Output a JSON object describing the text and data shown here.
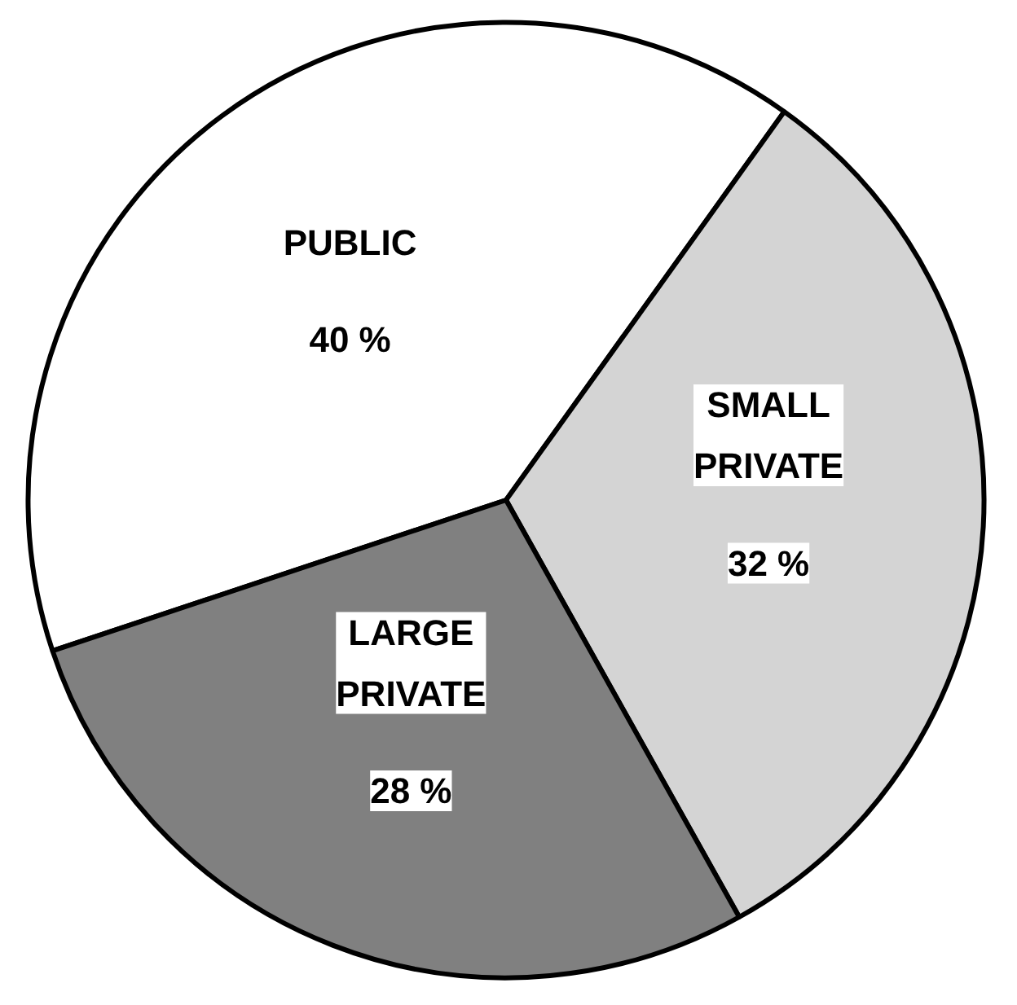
{
  "chart_data": {
    "type": "pie",
    "categories": [
      "PUBLIC",
      "SMALL PRIVATE",
      "LARGE PRIVATE"
    ],
    "values": [
      40,
      32,
      28
    ],
    "colors": [
      "#ffffff",
      "#d4d4d4",
      "#808080"
    ],
    "value_labels": [
      "40 %",
      "32 %",
      "28 %"
    ]
  }
}
